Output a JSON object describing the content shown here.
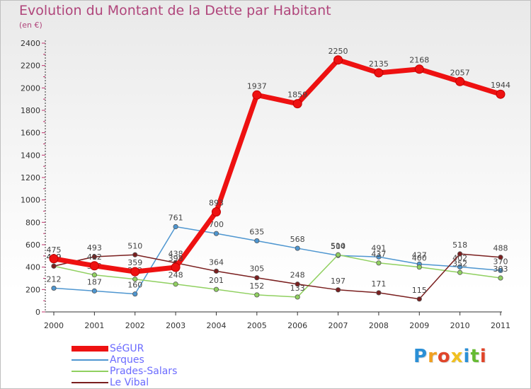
{
  "title": "Evolution du Montant de la Dette par Habitant",
  "unit_label": "(en €)",
  "logo": {
    "letters": [
      "P",
      "r",
      "o",
      "x",
      "i",
      "t",
      "i"
    ],
    "colors": [
      "#2a8fd6",
      "#f0a020",
      "#e0452a",
      "#f0c020",
      "#2a8fd6",
      "#66bb33",
      "#e0452a"
    ]
  },
  "chart_data": {
    "type": "line",
    "title": "Evolution du Montant de la Dette par Habitant",
    "subtitle": "(en €)",
    "xlabel": "",
    "ylabel": "",
    "x": [
      "2000",
      "2001",
      "2002",
      "2003",
      "2004",
      "2005",
      "2006",
      "2007",
      "2008",
      "2009",
      "2010",
      "2011"
    ],
    "ylim": [
      0,
      2400
    ],
    "yticks": [
      0,
      200,
      400,
      600,
      800,
      1000,
      1200,
      1400,
      1600,
      1800,
      2000,
      2200,
      2400
    ],
    "grid": false,
    "legend_position": "bottom-left",
    "series": [
      {
        "name": "SéGUR",
        "color": "#ee1111",
        "emphasis": true,
        "values": [
          475,
          412,
          359,
          398,
          893,
          1937,
          1859,
          2250,
          2135,
          2168,
          2057,
          1944
        ],
        "labels": [
          "475",
          "412",
          "359",
          "398",
          "893",
          "1937",
          "1859",
          "2250",
          "2135",
          "2168",
          "2057",
          "1944"
        ]
      },
      {
        "name": "Arques",
        "color": "#4e96d0",
        "values": [
          212,
          187,
          160,
          761,
          700,
          635,
          568,
          504,
          491,
          427,
          402,
          370
        ],
        "labels": [
          "212",
          "187",
          "160",
          "761",
          "700",
          "635",
          "568",
          "504",
          "491",
          "427",
          "402",
          "370"
        ]
      },
      {
        "name": "Prades-Salars",
        "color": "#90d060",
        "values": [
          409,
          330,
          292,
          248,
          201,
          152,
          133,
          510,
          437,
          400,
          352,
          303
        ],
        "labels": [
          "409",
          "330",
          "292",
          "248",
          "201",
          "152",
          "133",
          "510",
          "437",
          "400",
          "352",
          "303"
        ]
      },
      {
        "name": "Le Vibal",
        "color": "#7a1f1f",
        "values": [
          409,
          493,
          510,
          438,
          364,
          305,
          248,
          197,
          171,
          115,
          518,
          488
        ],
        "labels": [
          "409",
          "493",
          "510",
          "438",
          "364",
          "305",
          "248",
          "197",
          "171",
          "115",
          "518",
          "488"
        ]
      }
    ]
  }
}
